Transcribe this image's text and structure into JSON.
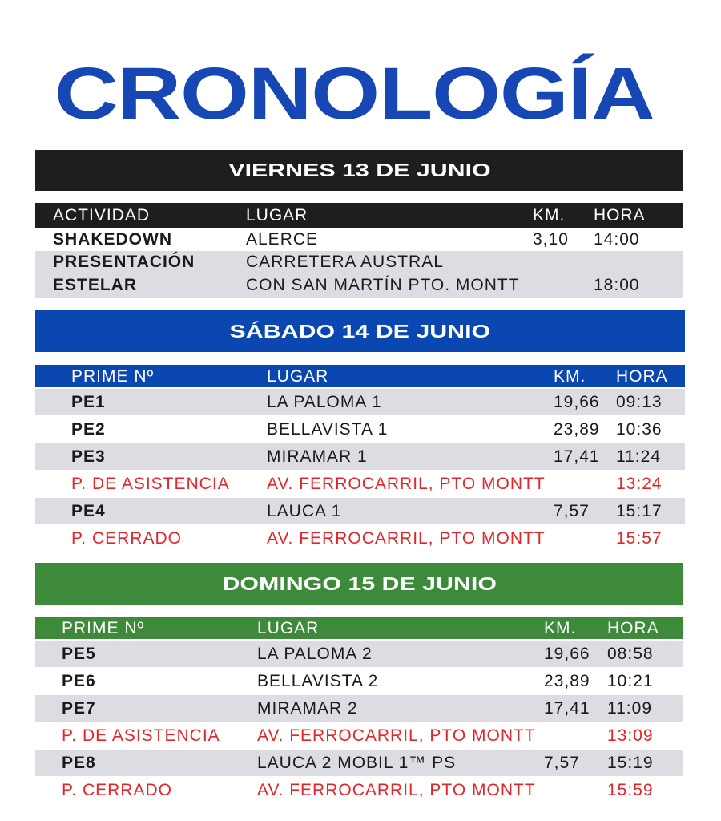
{
  "title": "CRONOLOGÍA",
  "sections": [
    {
      "title": "VIERNES 13 DE JUNIO",
      "color": "#1e1e1e",
      "columns": [
        "ACTIVIDAD",
        "LUGAR",
        "KM.",
        "HORA"
      ],
      "rows": [
        [
          "SHAKEDOWN",
          "ALERCE",
          "3,10",
          "14:00"
        ],
        [
          "PRESENTACIÓN\nESTELAR",
          "CARRETERA AUSTRAL\nCON SAN MARTÍN PTO. MONTT",
          null,
          "18:00"
        ]
      ]
    },
    {
      "title": "SÁBADO 14 DE JUNIO",
      "color": "#0a47b0",
      "columns": [
        "PRIME Nº",
        "LUGAR",
        "KM.",
        "HORA"
      ],
      "rows": [
        [
          "PE1",
          "LA PALOMA 1",
          "19,66",
          "09:13"
        ],
        [
          "PE2",
          "BELLAVISTA 1",
          "23,89",
          "10:36"
        ],
        [
          "PE3",
          "MIRAMAR 1",
          "17,41",
          "11:24"
        ],
        [
          "P. DE ASISTENCIA",
          "AV. FERROCARRIL, PTO MONTT",
          null,
          "13:24"
        ],
        [
          "PE4",
          "LAUCA 1",
          "7,57",
          "15:17"
        ],
        [
          "P. CERRADO",
          "AV. FERROCARRIL, PTO MONTT",
          null,
          "15:57"
        ]
      ]
    },
    {
      "title": "DOMINGO 15 DE JUNIO",
      "color": "#3c8a3a",
      "columns": [
        "PRIME Nº",
        "LUGAR",
        "KM.",
        "HORA"
      ],
      "rows": [
        [
          "PE5",
          "LA PALOMA 2",
          "19,66",
          "08:58"
        ],
        [
          "PE6",
          "BELLAVISTA 2",
          "23,89",
          "10:21"
        ],
        [
          "PE7",
          "MIRAMAR 2",
          "17,41",
          "11:09"
        ],
        [
          "P. DE ASISTENCIA",
          "AV. FERROCARRIL, PTO MONTT",
          null,
          "13:09"
        ],
        [
          "PE8",
          "LAUCA 2 MOBIL 1™ PS",
          "7,57",
          "15:19"
        ],
        [
          "P. CERRADO",
          "AV. FERROCARRIL, PTO MONTT",
          null,
          "15:59"
        ]
      ]
    }
  ]
}
